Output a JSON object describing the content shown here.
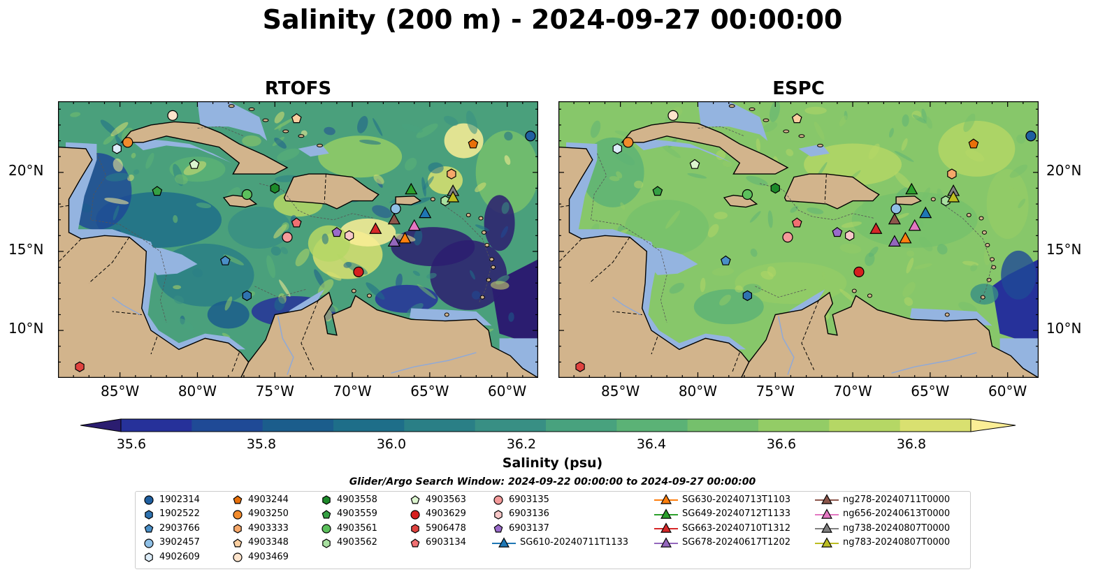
{
  "title": "Salinity (200 m) - 2024-09-27 00:00:00",
  "panels": [
    {
      "name": "RTOFS",
      "title": "RTOFS"
    },
    {
      "name": "ESPC",
      "title": "ESPC"
    }
  ],
  "axes": {
    "lon_ticks": [
      "85°W",
      "80°W",
      "75°W",
      "70°W",
      "65°W",
      "60°W"
    ],
    "lat_ticks": [
      "20°N",
      "15°N",
      "10°N"
    ]
  },
  "colorbar": {
    "label": "Salinity (psu)",
    "ticks": [
      "35.6",
      "35.8",
      "36.0",
      "36.2",
      "36.4",
      "36.6",
      "36.8"
    ],
    "colors": [
      "#2b1d70",
      "#26319a",
      "#1f4a96",
      "#1b5d8c",
      "#1e6e89",
      "#2a7f86",
      "#388f84",
      "#48a27e",
      "#5bb276",
      "#75c06c",
      "#93cc66",
      "#b5d765",
      "#d9e070",
      "#fbee96"
    ]
  },
  "search_window": "Glider/Argo Search Window: 2024-09-22 00:00:00 to 2024-09-27 00:00:00",
  "legend": {
    "col1": [
      {
        "label": "1902314",
        "shape": "circle",
        "color": "#1f5fa0"
      },
      {
        "label": "1902522",
        "shape": "hexagon",
        "color": "#2f73b0"
      },
      {
        "label": "2903766",
        "shape": "pentagon",
        "color": "#4a8fc7"
      },
      {
        "label": "3902457",
        "shape": "circle",
        "color": "#8fc0e6"
      },
      {
        "label": "4902609",
        "shape": "hexagon",
        "color": "#dcecf8"
      }
    ],
    "col2": [
      {
        "label": "4903244",
        "shape": "pentagon",
        "color": "#e8700a"
      },
      {
        "label": "4903250",
        "shape": "circle",
        "color": "#f28b2c"
      },
      {
        "label": "4903333",
        "shape": "hexagon",
        "color": "#f6a86a"
      },
      {
        "label": "4903348",
        "shape": "pentagon",
        "color": "#fbcfa0"
      },
      {
        "label": "4903469",
        "shape": "circle",
        "color": "#fde4cc"
      }
    ],
    "col3": [
      {
        "label": "4903558",
        "shape": "hexagon",
        "color": "#1d8a2a"
      },
      {
        "label": "4903559",
        "shape": "pentagon",
        "color": "#35a043"
      },
      {
        "label": "4903561",
        "shape": "circle",
        "color": "#5cc05c"
      },
      {
        "label": "4903562",
        "shape": "hexagon",
        "color": "#a8e0a0"
      }
    ],
    "col4": [
      {
        "label": "4903563",
        "shape": "pentagon",
        "color": "#dcf5cf"
      },
      {
        "label": "4903629",
        "shape": "circle",
        "color": "#d6201f"
      },
      {
        "label": "5906478",
        "shape": "hexagon",
        "color": "#e0433f"
      },
      {
        "label": "6903134",
        "shape": "pentagon",
        "color": "#f07072"
      }
    ],
    "col5": [
      {
        "label": "6903135",
        "shape": "circle",
        "color": "#f49a9a"
      },
      {
        "label": "6903136",
        "shape": "hexagon",
        "color": "#f8c8c8"
      },
      {
        "label": "6903137",
        "shape": "pentagon",
        "color": "#9a6bcb"
      },
      {
        "label": "SG610-20240711T1133",
        "shape": "triangle",
        "color": "#1f77b4"
      }
    ],
    "col6": [
      {
        "label": "SG630-20240713T1103",
        "shape": "triangle",
        "color": "#ff7f0e"
      },
      {
        "label": "SG649-20240712T1133",
        "shape": "triangle",
        "color": "#2ca02c"
      },
      {
        "label": "SG663-20240710T1312",
        "shape": "triangle",
        "color": "#d62728"
      },
      {
        "label": "SG678-20240617T1202",
        "shape": "triangle",
        "color": "#9467bd"
      }
    ],
    "col7": [
      {
        "label": "ng278-20240711T0000",
        "shape": "triangle",
        "color": "#8c564b"
      },
      {
        "label": "ng656-20240613T0000",
        "shape": "triangle",
        "color": "#e377c2"
      },
      {
        "label": "ng738-20240807T0000",
        "shape": "triangle",
        "color": "#7f7f7f"
      },
      {
        "label": "ng783-20240807T0000",
        "shape": "triangle",
        "color": "#bcbd22"
      }
    ]
  },
  "map_markers": [
    {
      "lon": -58.5,
      "lat": 22.3,
      "shape": "circle",
      "color": "#1f5fa0"
    },
    {
      "lon": -76.8,
      "lat": 12.2,
      "shape": "hexagon",
      "color": "#2f73b0"
    },
    {
      "lon": -78.2,
      "lat": 14.4,
      "shape": "pentagon",
      "color": "#4a8fc7"
    },
    {
      "lon": -67.2,
      "lat": 17.7,
      "shape": "circle",
      "color": "#8fc0e6"
    },
    {
      "lon": -85.2,
      "lat": 21.5,
      "shape": "hexagon",
      "color": "#dcecf8"
    },
    {
      "lon": -62.2,
      "lat": 21.8,
      "shape": "pentagon",
      "color": "#e8700a"
    },
    {
      "lon": -84.5,
      "lat": 21.9,
      "shape": "circle",
      "color": "#f28b2c"
    },
    {
      "lon": -63.6,
      "lat": 19.9,
      "shape": "hexagon",
      "color": "#f6a86a"
    },
    {
      "lon": -73.6,
      "lat": 23.4,
      "shape": "pentagon",
      "color": "#fbcfa0"
    },
    {
      "lon": -81.6,
      "lat": 23.6,
      "shape": "circle",
      "color": "#fde4cc"
    },
    {
      "lon": -75.0,
      "lat": 19.0,
      "shape": "hexagon",
      "color": "#1d8a2a"
    },
    {
      "lon": -82.6,
      "lat": 18.8,
      "shape": "pentagon",
      "color": "#35a043"
    },
    {
      "lon": -76.8,
      "lat": 18.6,
      "shape": "circle",
      "color": "#5cc05c"
    },
    {
      "lon": -64.0,
      "lat": 18.2,
      "shape": "hexagon",
      "color": "#a8e0a0"
    },
    {
      "lon": -80.2,
      "lat": 20.5,
      "shape": "pentagon",
      "color": "#dcf5cf"
    },
    {
      "lon": -69.6,
      "lat": 13.7,
      "shape": "circle",
      "color": "#d6201f"
    },
    {
      "lon": -87.6,
      "lat": 7.7,
      "shape": "hexagon",
      "color": "#e0433f"
    },
    {
      "lon": -73.6,
      "lat": 16.8,
      "shape": "pentagon",
      "color": "#f07072"
    },
    {
      "lon": -74.2,
      "lat": 15.9,
      "shape": "circle",
      "color": "#f49a9a"
    },
    {
      "lon": -70.2,
      "lat": 16.0,
      "shape": "hexagon",
      "color": "#f8c8c8"
    },
    {
      "lon": -71.0,
      "lat": 16.2,
      "shape": "pentagon",
      "color": "#9a6bcb"
    },
    {
      "lon": -65.3,
      "lat": 17.4,
      "shape": "triangle",
      "color": "#1f77b4"
    },
    {
      "lon": -66.6,
      "lat": 15.8,
      "shape": "triangle",
      "color": "#ff7f0e"
    },
    {
      "lon": -66.2,
      "lat": 18.9,
      "shape": "triangle",
      "color": "#2ca02c"
    },
    {
      "lon": -68.5,
      "lat": 16.4,
      "shape": "triangle",
      "color": "#d62728"
    },
    {
      "lon": -67.3,
      "lat": 15.6,
      "shape": "triangle",
      "color": "#9467bd"
    },
    {
      "lon": -67.3,
      "lat": 17.0,
      "shape": "triangle",
      "color": "#8c564b"
    },
    {
      "lon": -66.0,
      "lat": 16.6,
      "shape": "triangle",
      "color": "#e377c2"
    },
    {
      "lon": -63.5,
      "lat": 18.8,
      "shape": "triangle",
      "color": "#7f7f7f"
    },
    {
      "lon": -63.5,
      "lat": 18.4,
      "shape": "triangle",
      "color": "#bcbd22"
    }
  ]
}
